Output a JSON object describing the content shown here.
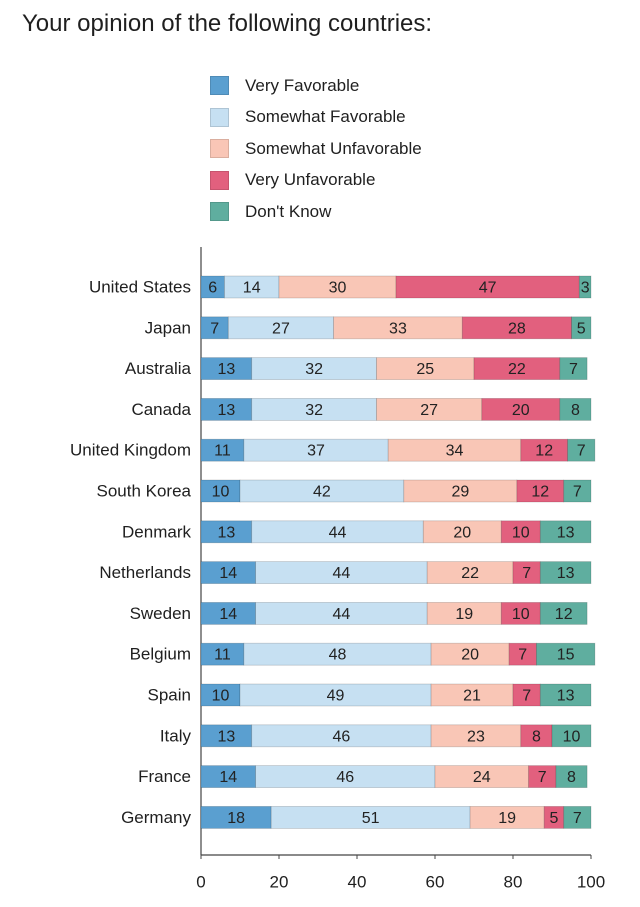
{
  "chart_data": {
    "type": "bar",
    "orientation": "horizontal",
    "stacked": true,
    "title": "Your opinion of the following countries:",
    "categories": [
      "United States",
      "Japan",
      "Australia",
      "Canada",
      "United Kingdom",
      "South Korea",
      "Denmark",
      "Netherlands",
      "Sweden",
      "Belgium",
      "Spain",
      "Italy",
      "France",
      "Germany"
    ],
    "series": [
      {
        "name": "Very Favorable",
        "color": "#5a9fd0",
        "values": [
          6,
          7,
          13,
          13,
          11,
          10,
          13,
          14,
          14,
          11,
          10,
          13,
          14,
          18
        ]
      },
      {
        "name": "Somewhat Favorable",
        "color": "#c6e0f2",
        "values": [
          14,
          27,
          32,
          32,
          37,
          42,
          44,
          44,
          44,
          48,
          49,
          46,
          46,
          51
        ]
      },
      {
        "name": "Somewhat Unfavorable",
        "color": "#f9c6b6",
        "values": [
          30,
          33,
          25,
          27,
          34,
          29,
          20,
          22,
          19,
          20,
          21,
          23,
          24,
          19
        ]
      },
      {
        "name": "Very Unfavorable",
        "color": "#e2607e",
        "values": [
          47,
          28,
          22,
          20,
          12,
          12,
          10,
          7,
          10,
          7,
          7,
          8,
          7,
          5
        ]
      },
      {
        "name": "Don't Know",
        "color": "#5fae9f",
        "values": [
          3,
          5,
          7,
          8,
          7,
          7,
          13,
          13,
          12,
          15,
          13,
          10,
          8,
          7
        ]
      }
    ],
    "xlim": [
      0,
      100
    ],
    "xticks": [
      0,
      20,
      40,
      60,
      80,
      100
    ],
    "xlabel": "",
    "ylabel": "",
    "grid": false,
    "legend_position": "top"
  }
}
